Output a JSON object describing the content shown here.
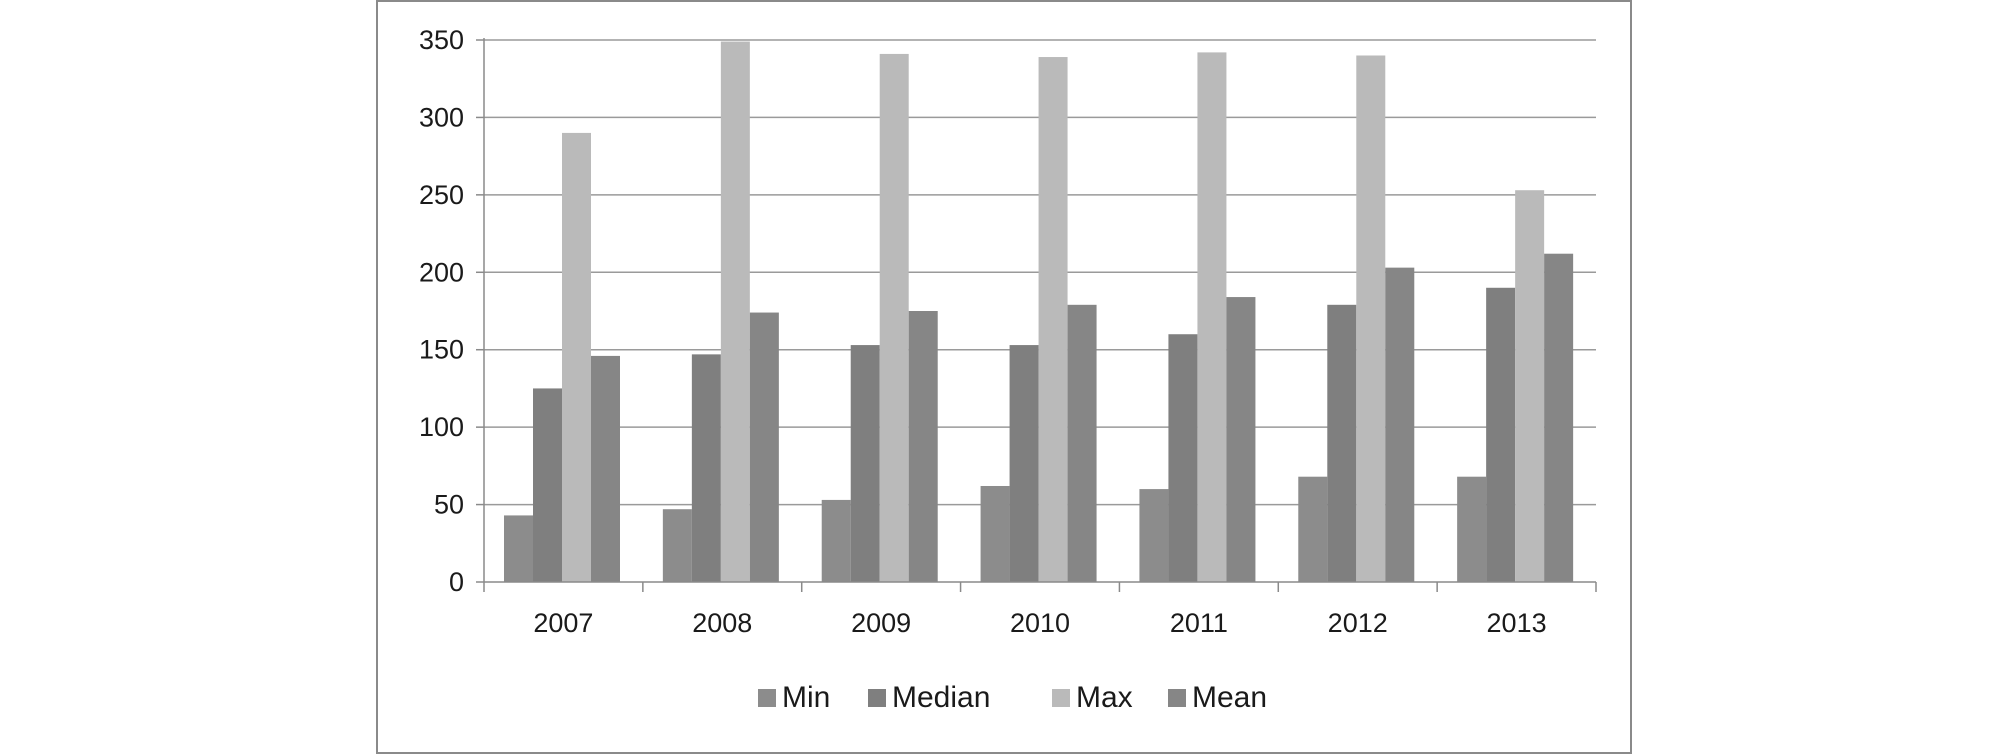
{
  "chart_data": {
    "type": "bar",
    "title": "",
    "xlabel": "",
    "ylabel": "",
    "categories": [
      "2007",
      "2008",
      "2009",
      "2010",
      "2011",
      "2012",
      "2013"
    ],
    "ylim": [
      0,
      350
    ],
    "yticks": [
      "0",
      "50",
      "100",
      "150",
      "200",
      "250",
      "300",
      "350"
    ],
    "grid": true,
    "legend_position": "bottom",
    "series": [
      {
        "name": "Min",
        "color": "#8c8c8c",
        "values": [
          43,
          47,
          53,
          62,
          60,
          68,
          68
        ]
      },
      {
        "name": "Median",
        "color": "#7f7f7f",
        "values": [
          125,
          147,
          153,
          153,
          160,
          179,
          190
        ]
      },
      {
        "name": "Max",
        "color": "#bababa",
        "values": [
          290,
          349,
          341,
          339,
          342,
          340,
          253
        ]
      },
      {
        "name": "Mean",
        "color": "#868686",
        "values": [
          146,
          174,
          175,
          179,
          184,
          203,
          212
        ]
      }
    ]
  }
}
